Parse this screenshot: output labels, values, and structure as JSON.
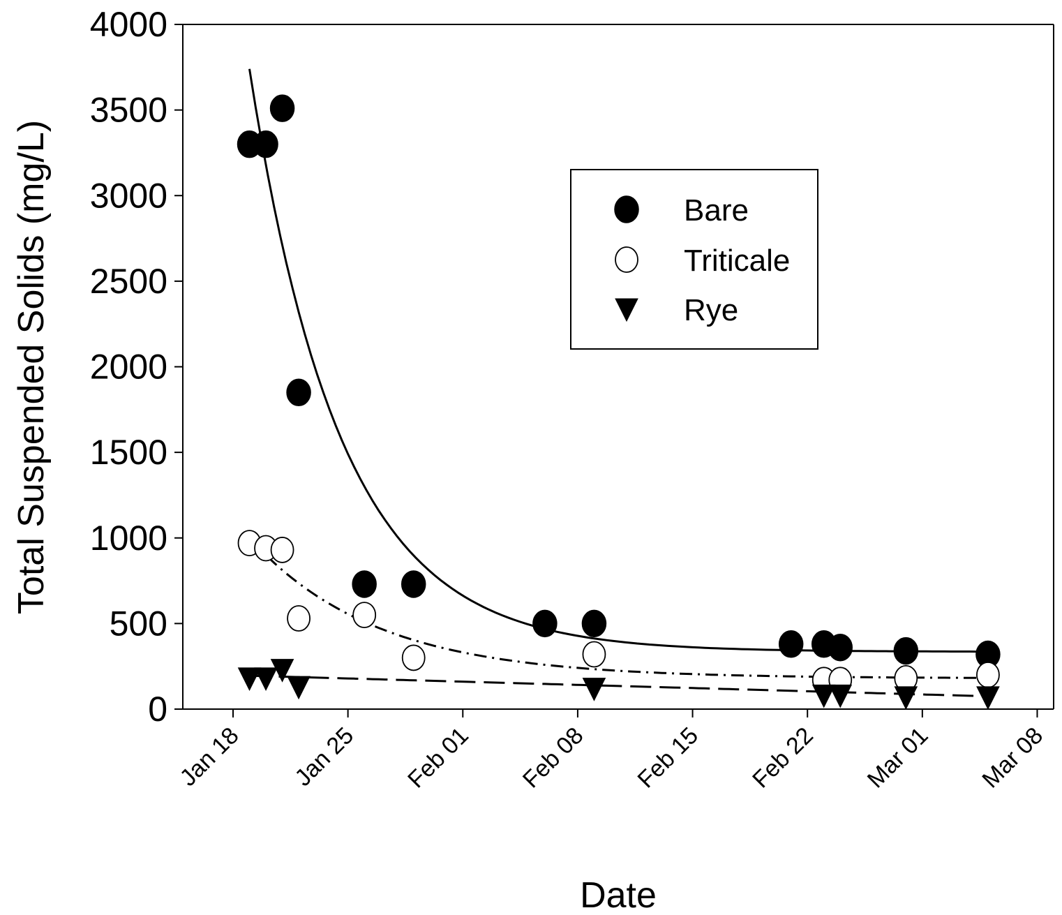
{
  "chart_data": {
    "type": "scatter",
    "title": "",
    "xlabel": "Date",
    "ylabel": "Total Suspended Solids (mg/L)",
    "ylim": [
      0,
      4000
    ],
    "xlim": [
      "2024-01-18",
      "2024-03-08"
    ],
    "x_ticks": [
      "Jan 18",
      "Jan 25",
      "Feb 01",
      "Feb 08",
      "Feb 15",
      "Feb 22",
      "Mar 01",
      "Mar 08"
    ],
    "y_ticks": [
      "0",
      "500",
      "1000",
      "1500",
      "2000",
      "2500",
      "3000",
      "3500",
      "4000"
    ],
    "grid": false,
    "legend_position": "upper-right (inside)",
    "series": [
      {
        "name": "Bare",
        "marker": "filled-circle",
        "fit_line": "solid",
        "points": [
          {
            "x": "2024-01-19",
            "y": 3300
          },
          {
            "x": "2024-01-20",
            "y": 3300
          },
          {
            "x": "2024-01-21",
            "y": 3510
          },
          {
            "x": "2024-01-22",
            "y": 1850
          },
          {
            "x": "2024-01-26",
            "y": 730
          },
          {
            "x": "2024-01-29",
            "y": 730
          },
          {
            "x": "2024-02-06",
            "y": 500
          },
          {
            "x": "2024-02-09",
            "y": 500
          },
          {
            "x": "2024-02-21",
            "y": 380
          },
          {
            "x": "2024-02-23",
            "y": 380
          },
          {
            "x": "2024-02-24",
            "y": 360
          },
          {
            "x": "2024-02-28",
            "y": 340
          },
          {
            "x": "2024-03-04",
            "y": 320
          }
        ]
      },
      {
        "name": "Triticale",
        "marker": "open-circle",
        "fit_line": "dash-dot",
        "points": [
          {
            "x": "2024-01-19",
            "y": 970
          },
          {
            "x": "2024-01-20",
            "y": 940
          },
          {
            "x": "2024-01-21",
            "y": 930
          },
          {
            "x": "2024-01-22",
            "y": 530
          },
          {
            "x": "2024-01-26",
            "y": 550
          },
          {
            "x": "2024-01-29",
            "y": 300
          },
          {
            "x": "2024-02-09",
            "y": 320
          },
          {
            "x": "2024-02-23",
            "y": 170
          },
          {
            "x": "2024-02-24",
            "y": 170
          },
          {
            "x": "2024-02-28",
            "y": 180
          },
          {
            "x": "2024-03-04",
            "y": 200
          }
        ]
      },
      {
        "name": "Rye",
        "marker": "filled-down-triangle",
        "fit_line": "dashed",
        "points": [
          {
            "x": "2024-01-19",
            "y": 180
          },
          {
            "x": "2024-01-20",
            "y": 180
          },
          {
            "x": "2024-01-21",
            "y": 230
          },
          {
            "x": "2024-01-22",
            "y": 130
          },
          {
            "x": "2024-02-09",
            "y": 120
          },
          {
            "x": "2024-02-23",
            "y": 80
          },
          {
            "x": "2024-02-24",
            "y": 80
          },
          {
            "x": "2024-02-28",
            "y": 70
          },
          {
            "x": "2024-03-04",
            "y": 70
          }
        ]
      }
    ],
    "fit_curves": [
      {
        "series": "Bare",
        "x_start": "2024-01-19",
        "x_end": "2024-03-04",
        "asymptote": 335,
        "start_value": 3740,
        "decay_per_day": 0.18
      },
      {
        "series": "Triticale",
        "x_start": "2024-01-19",
        "x_end": "2024-03-04",
        "asymptote": 180,
        "start_value": 1000,
        "decay_per_day": 0.13
      },
      {
        "series": "Rye",
        "x_start": "2024-01-19",
        "x_end": "2024-03-04",
        "linear_start": 195,
        "linear_end": 75
      }
    ]
  }
}
